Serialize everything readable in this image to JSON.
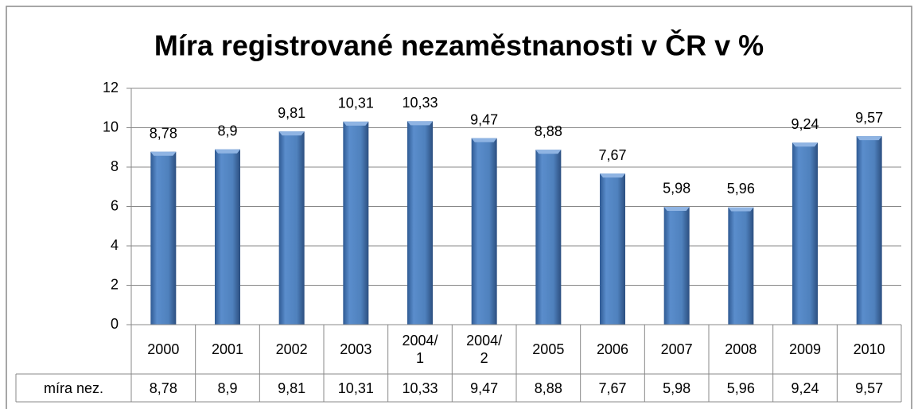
{
  "chart_data": {
    "type": "bar",
    "title": "Míra registrované nezaměstnanosti v ČR v %",
    "categories": [
      "2000",
      "2001",
      "2002",
      "2003",
      "2004/1",
      "2004/2",
      "2005",
      "2006",
      "2007",
      "2008",
      "2009",
      "2010"
    ],
    "series": [
      {
        "name": "míra nez.",
        "color": "#4f81bd",
        "values": [
          8.78,
          8.9,
          9.81,
          10.31,
          10.33,
          9.47,
          8.88,
          7.67,
          5.98,
          5.96,
          9.24,
          9.57
        ],
        "value_labels": [
          "8,78",
          "8,9",
          "9,81",
          "10,31",
          "10,33",
          "9,47",
          "8,88",
          "7,67",
          "5,98",
          "5,96",
          "9,24",
          "9,57"
        ]
      }
    ],
    "ylim": [
      0,
      12
    ],
    "yticks": [
      0,
      2,
      4,
      6,
      8,
      10,
      12
    ],
    "grid": true,
    "data_table": true
  }
}
